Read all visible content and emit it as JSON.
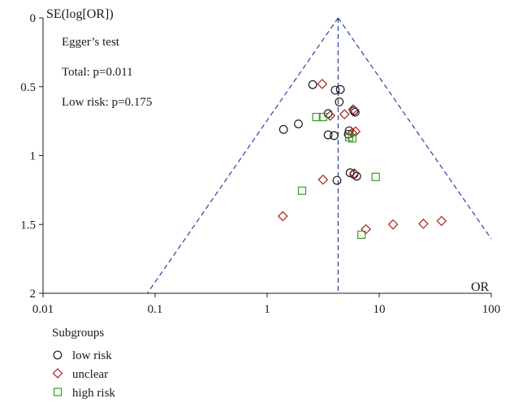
{
  "chart_data": {
    "type": "scatter",
    "title": "",
    "xlabel": "OR",
    "ylabel": "SE(log[OR])",
    "x_scale": "log",
    "xlim": [
      0.01,
      100
    ],
    "ylim": [
      0,
      2
    ],
    "y_reversed": true,
    "x_ticks": [
      "0.01",
      "0.1",
      "1",
      "10",
      "100"
    ],
    "y_ticks": [
      "0",
      "0.5",
      "1",
      "1.5",
      "2"
    ],
    "grid": false,
    "pooled_or": 4.3,
    "funnel_color": "#2b3fa8",
    "annotations": [
      "Egger’s test",
      "Total: p=0.011",
      "Low risk: p=0.175"
    ],
    "legend": {
      "title": "Subgroups",
      "placement": "bottom-left",
      "items": [
        "low risk",
        "unclear",
        "high risk"
      ]
    },
    "series": [
      {
        "name": "low risk",
        "marker": "circle",
        "color": "#1a1a1a",
        "points": [
          {
            "x": 2.55,
            "y": 0.485
          },
          {
            "x": 4.05,
            "y": 0.525
          },
          {
            "x": 4.5,
            "y": 0.52
          },
          {
            "x": 4.4,
            "y": 0.61
          },
          {
            "x": 5.95,
            "y": 0.675
          },
          {
            "x": 6.1,
            "y": 0.685
          },
          {
            "x": 3.5,
            "y": 0.695
          },
          {
            "x": 1.9,
            "y": 0.77
          },
          {
            "x": 1.4,
            "y": 0.81
          },
          {
            "x": 5.4,
            "y": 0.82
          },
          {
            "x": 3.5,
            "y": 0.85
          },
          {
            "x": 3.95,
            "y": 0.855
          },
          {
            "x": 5.3,
            "y": 0.845
          },
          {
            "x": 5.5,
            "y": 1.125
          },
          {
            "x": 5.95,
            "y": 1.135
          },
          {
            "x": 6.3,
            "y": 1.15
          },
          {
            "x": 4.2,
            "y": 1.18
          }
        ]
      },
      {
        "name": "unclear",
        "marker": "diamond",
        "color": "#a8201a",
        "points": [
          {
            "x": 3.1,
            "y": 0.48
          },
          {
            "x": 5.85,
            "y": 0.665
          },
          {
            "x": 3.65,
            "y": 0.71
          },
          {
            "x": 4.9,
            "y": 0.7
          },
          {
            "x": 6.15,
            "y": 0.825
          },
          {
            "x": 5.75,
            "y": 0.835
          },
          {
            "x": 6.0,
            "y": 1.13
          },
          {
            "x": 3.15,
            "y": 1.175
          },
          {
            "x": 1.38,
            "y": 1.44
          },
          {
            "x": 7.6,
            "y": 1.535
          },
          {
            "x": 13.3,
            "y": 1.5
          },
          {
            "x": 24.8,
            "y": 1.495
          },
          {
            "x": 36.0,
            "y": 1.475
          }
        ]
      },
      {
        "name": "high risk",
        "marker": "square",
        "color": "#3a9a2a",
        "points": [
          {
            "x": 2.75,
            "y": 0.72
          },
          {
            "x": 3.15,
            "y": 0.72
          },
          {
            "x": 5.4,
            "y": 0.865
          },
          {
            "x": 5.75,
            "y": 0.875
          },
          {
            "x": 9.3,
            "y": 1.155
          },
          {
            "x": 2.05,
            "y": 1.255
          },
          {
            "x": 6.95,
            "y": 1.575
          }
        ]
      }
    ]
  }
}
